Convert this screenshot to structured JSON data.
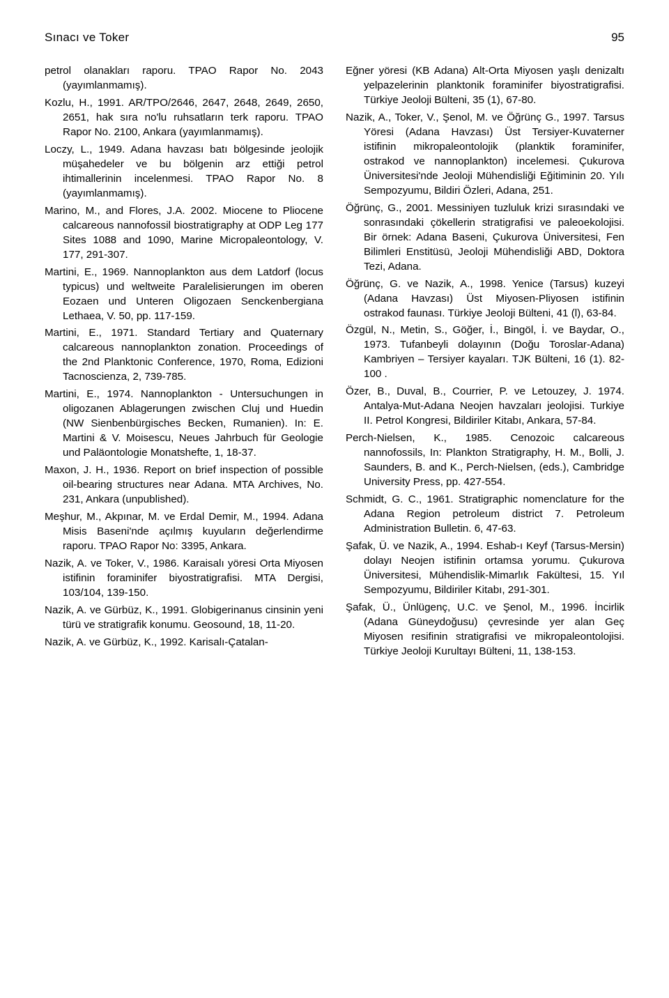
{
  "header": {
    "title": "Sınacı ve Toker",
    "page": "95"
  },
  "left": [
    "petrol olanakları raporu. TPAO Rapor No. 2043 (yayımlanmamış).",
    "Kozlu, H., 1991. AR/TPO/2646, 2647, 2648, 2649, 2650, 2651, hak sıra no'lu ruhsatların terk raporu. TPAO Rapor No. 2100, Ankara (yayımlanmamış).",
    "Loczy, L., 1949. Adana havzası batı bölgesinde jeolojik müşahedeler ve bu bölgenin arz ettiği petrol ihtimallerinin incelenmesi. TPAO Rapor No. 8 (yayımlanmamış).",
    "Marino, M., and Flores, J.A. 2002. Miocene to Pliocene calcareous nannofossil biostratigraphy at ODP Leg 177 Sites 1088 and 1090, Marine Micropaleontology, V. 177, 291-307.",
    "Martini, E., 1969. Nannoplankton aus dem Latdorf (locus typicus) und weltweite Paralelisierungen im oberen Eozaen und Unteren Oligozaen Senckenbergiana Lethaea, V. 50, pp. 117-159.",
    "Martini, E., 1971. Standard Tertiary and Quaternary calcareous nannoplankton zonation. Proceedings of the 2nd Planktonic Conference, 1970, Roma, Edizioni Tacnoscienza, 2, 739-785.",
    "Martini, E., 1974. Nannoplankton - Untersuchungen in oligozanen Ablagerungen zwischen Cluj und Huedin (NW Sienbenbürgisches Becken, Rumanien). In: E. Martini & V. Moisescu, Neues Jahrbuch für Geologie und Paläontologie Monatshefte, 1, 18-37.",
    "Maxon, J. H., 1936. Report on brief inspection of possible oil-bearing structures near Adana. MTA Archives, No. 231, Ankara (unpublished).",
    "Meşhur, M., Akpınar, M. ve Erdal Demir, M., 1994. Adana Misis Baseni'nde açılmış kuyuların değerlendirme raporu. TPAO Rapor No: 3395, Ankara.",
    "Nazik, A. ve Toker, V., 1986. Karaisalı yöresi Orta Miyosen istifinin foraminifer biyostratigrafisi. MTA Dergisi, 103/104, 139-150.",
    "Nazik, A. ve Gürbüz, K., 1991. Globigerinanus cinsinin yeni türü ve stratigrafik konumu. Geosound, 18, 11-20.",
    "Nazik, A. ve Gürbüz, K., 1992. Karisalı-Çatalan-"
  ],
  "right": [
    "Eğner yöresi (KB Adana) Alt-Orta Miyosen yaşlı denizaltı yelpazelerinin planktonik foraminifer biyostratigrafisi. Türkiye Jeoloji Bülteni, 35 (1), 67-80.",
    "Nazik, A., Toker, V., Şenol, M. ve Öğrünç G., 1997. Tarsus Yöresi (Adana Havzası) Üst Tersiyer-Kuvaterner istifinin mikropaleontolojik (planktik foraminifer, ostrakod ve nannoplankton) incelemesi. Çukurova Üniversitesi'nde Jeoloji Mühendisliği Eğitiminin 20. Yılı Sempozyumu, Bildiri Özleri, Adana, 251.",
    "Öğrünç, G., 2001. Messiniyen tuzluluk krizi sırasındaki ve sonrasındaki çökellerin stratigrafisi ve paleoekolojisi. Bir örnek: Adana Baseni, Çukurova Üniversitesi, Fen Bilimleri Enstitüsü, Jeoloji Mühendisliği ABD, Doktora Tezi, Adana.",
    "Öğrünç, G. ve Nazik, A., 1998. Yenice (Tarsus) kuzeyi (Adana Havzası) Üst Miyosen-Pliyosen istifinin ostrakod faunası. Türkiye Jeoloji Bülteni, 41 (l), 63-84.",
    "Özgül, N., Metin, S., Göğer, İ., Bingöl, İ. ve Baydar, O., 1973. Tufanbeyli dolayının (Doğu Toroslar-Adana) Kambriyen – Tersiyer kayaları. TJK Bülteni, 16 (1). 82-100 .",
    "Özer, B., Duval, B., Courrier, P. ve Letouzey, J. 1974. Antalya-Mut-Adana Neojen havzaları jeolojisi. Turkiye II. Petrol Kongresi, Bildiriler Kitabı, Ankara, 57-84.",
    "Perch-Nielsen, K., 1985. Cenozoic calcareous nannofossils, In: Plankton Stratigraphy, H. M., Bolli, J. Saunders, B. and K., Perch-Nielsen, (eds.), Cambridge University Press, pp. 427-554.",
    "Schmidt, G. C., 1961. Stratigraphic nomenclature for the Adana Region petroleum district 7. Petroleum Administration Bulletin. 6, 47-63.",
    "Şafak, Ü. ve Nazik, A., 1994. Eshab-ı Keyf (Tarsus-Mersin) dolayı Neojen istifinin ortamsa yorumu. Çukurova Üniversitesi, Mühendislik-Mimarlık Fakültesi, 15. Yıl Sempozyumu, Bildiriler Kitabı, 291-301.",
    "Şafak, Ü., Ünlügenç, U.C. ve Şenol, M., 1996. İncirlik (Adana Güneydoğusu) çevresinde yer alan Geç Miyosen resifinin stratigrafisi ve mikropaleontolojisi. Türkiye Jeoloji Kurultayı Bülteni, 11, 138-153."
  ]
}
